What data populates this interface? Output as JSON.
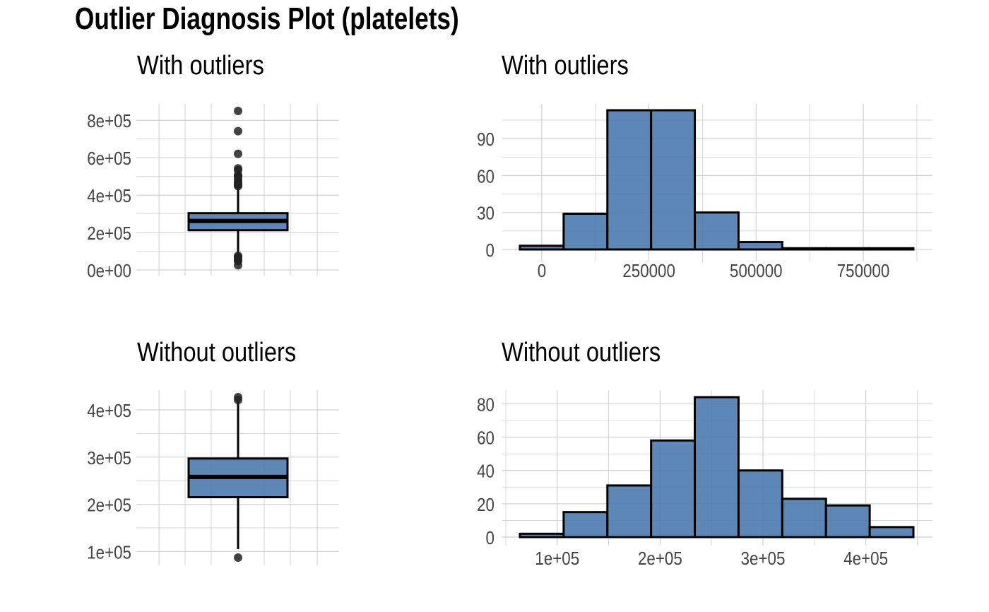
{
  "title": "Outlier Diagnosis Plot (platelets)",
  "colors": {
    "fill": "#4a7aae",
    "grid": "#d0d0d0",
    "outline": "#000000",
    "tick_text": "#444444"
  },
  "chart_data": [
    {
      "type": "box",
      "title": "With outliers",
      "ylim": [
        0,
        850000
      ],
      "y_ticks": [
        0,
        200000,
        400000,
        600000,
        800000
      ],
      "y_tick_labels": [
        "0e+00",
        "2e+05",
        "4e+05",
        "6e+05",
        "8e+05"
      ],
      "box": {
        "q1": 212500,
        "median": 262000,
        "q3": 303500,
        "whisker_low": 76000,
        "whisker_high": 440000
      },
      "outliers": [
        25100,
        47000,
        51000,
        62000,
        70000,
        75000,
        448000,
        454000,
        461000,
        470000,
        481000,
        497000,
        504000,
        507000,
        533000,
        543000,
        621000,
        742000,
        850000
      ]
    },
    {
      "type": "bar",
      "title": "With outliers",
      "x": [
        0,
        102000,
        204000,
        306000,
        408000,
        510000,
        612000,
        714000,
        816000
      ],
      "values": [
        3,
        29,
        113,
        113,
        30,
        6,
        1,
        1,
        1
      ],
      "bin_width": 102000,
      "xlim": [
        -51000,
        867000
      ],
      "x_ticks": [
        0,
        250000,
        500000,
        750000
      ],
      "x_tick_labels": [
        "0",
        "250000",
        "500000",
        "750000"
      ],
      "ylim": [
        0,
        113
      ],
      "y_ticks": [
        0,
        30,
        60,
        90
      ],
      "y_tick_labels": [
        "0",
        "30",
        "60",
        "90"
      ]
    },
    {
      "type": "box",
      "title": "Without outliers",
      "ylim": [
        87000,
        427000
      ],
      "y_ticks": [
        100000,
        200000,
        300000,
        400000
      ],
      "y_tick_labels": [
        "1e+05",
        "2e+05",
        "3e+05",
        "4e+05"
      ],
      "box": {
        "q1": 215000,
        "median": 258000,
        "q3": 297000,
        "whisker_low": 105000,
        "whisker_high": 422000
      },
      "outliers": [
        87000,
        421000,
        427000
      ]
    },
    {
      "type": "bar",
      "title": "Without outliers",
      "x": [
        85000,
        127500,
        170000,
        212500,
        255000,
        297500,
        340000,
        382500,
        425000
      ],
      "values": [
        2,
        15,
        31,
        58,
        84,
        40,
        23,
        19,
        6
      ],
      "bin_width": 42500,
      "xlim": [
        63750,
        446250
      ],
      "x_ticks": [
        100000,
        200000,
        300000,
        400000
      ],
      "x_tick_labels": [
        "1e+05",
        "2e+05",
        "3e+05",
        "4e+05"
      ],
      "ylim": [
        0,
        84
      ],
      "y_ticks": [
        0,
        20,
        40,
        60,
        80
      ],
      "y_tick_labels": [
        "0",
        "20",
        "40",
        "60",
        "80"
      ]
    }
  ]
}
